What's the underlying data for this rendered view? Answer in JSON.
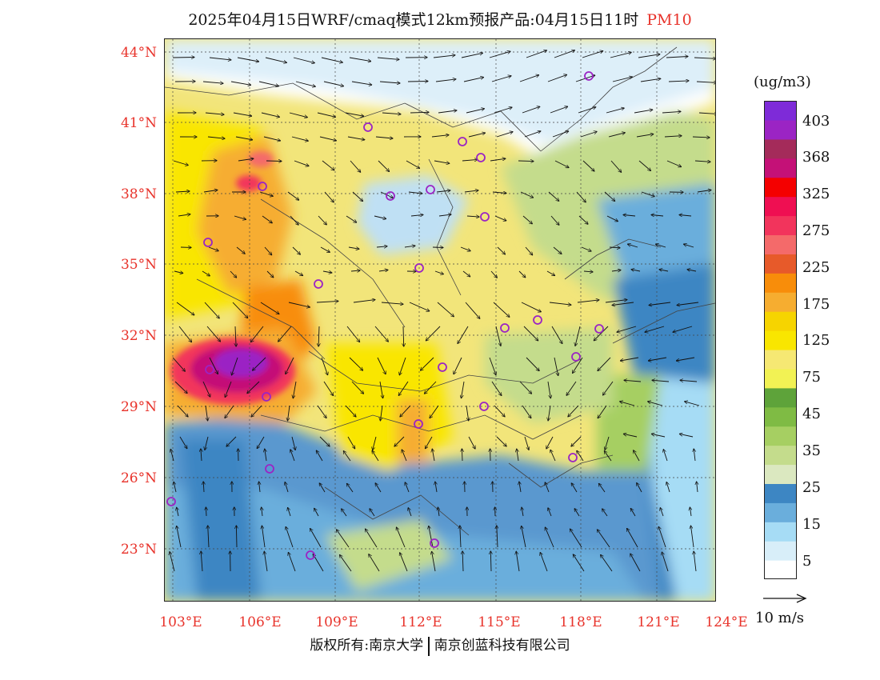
{
  "title": {
    "main": "2025年04月15日WRF/cmaq模式12km预报产品:04月15日11时",
    "product": "PM10"
  },
  "y_axis": {
    "ticks": [
      "44°N",
      "41°N",
      "38°N",
      "35°N",
      "32°N",
      "29°N",
      "26°N",
      "23°N"
    ]
  },
  "x_axis": {
    "ticks": [
      "103°E",
      "106°E",
      "109°E",
      "112°E",
      "115°E",
      "118°E",
      "121°E",
      "124°E"
    ]
  },
  "colorbar": {
    "unit": "(ug/m3)",
    "colors": [
      "#ffffff",
      "#d8eef9",
      "#a6dcf5",
      "#6aaedc",
      "#3d86c3",
      "#dbe8c0",
      "#c4dc8c",
      "#a6cf62",
      "#7fbb44",
      "#5ea33a",
      "#f2f254",
      "#f6e873",
      "#f9e600",
      "#f6d400",
      "#f6ad30",
      "#f88d0a",
      "#e75a2a",
      "#f46a6a",
      "#f2345c",
      "#ef0f52",
      "#f40000",
      "#c41177",
      "#a42b5a",
      "#9b24c4",
      "#7e2bd8"
    ],
    "labels": [
      "5",
      "15",
      "25",
      "35",
      "45",
      "75",
      "125",
      "175",
      "225",
      "275",
      "325",
      "368",
      "403"
    ]
  },
  "wind_scale": {
    "label": "10 m/s"
  },
  "footer": {
    "left": "版权所有:南京大学",
    "right": "南京创蓝科技有限公司"
  },
  "map_layers": {
    "base_color": "#f2e57a",
    "clean_area": "#ffffff",
    "ocean": "#5a98cf",
    "green_band": "#a6cf62",
    "hotspot_center": "#9b24c4",
    "station_marker": "#9b24c4"
  }
}
